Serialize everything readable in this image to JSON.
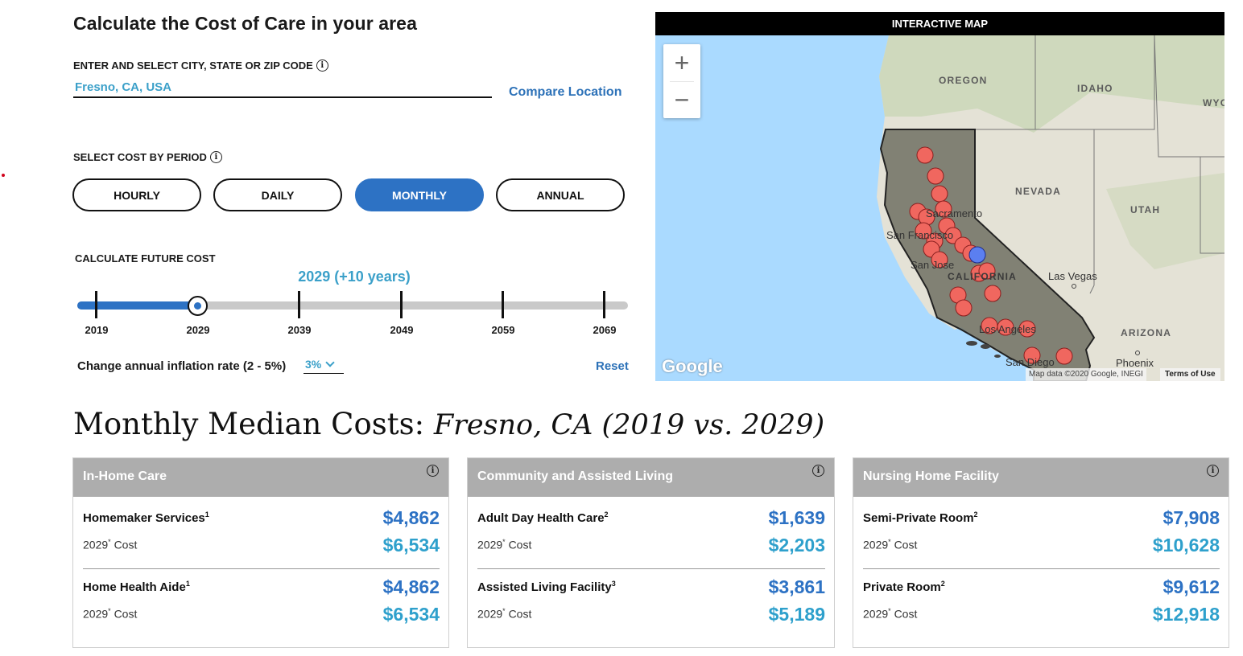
{
  "calculator": {
    "title": "Calculate the Cost of Care in your area",
    "city_label": "ENTER AND SELECT CITY, STATE OR ZIP CODE",
    "city_value": "Fresno, CA, USA",
    "compare_label": "Compare Location",
    "period_label": "SELECT COST BY PERIOD",
    "periods": [
      "HOURLY",
      "DAILY",
      "MONTHLY",
      "ANNUAL"
    ],
    "selected_period": "MONTHLY",
    "future_label": "CALCULATE FUTURE COST",
    "future_value": "2029 (+10 years)",
    "timeline_years": [
      "2019",
      "2029",
      "2039",
      "2049",
      "2059",
      "2069"
    ],
    "selected_year": "2029",
    "inflation_label": "Change annual inflation rate (2 - 5%)",
    "inflation_value": "3%",
    "reset_label": "Reset",
    "info_icon": "info-icon"
  },
  "map": {
    "header": "INTERACTIVE MAP",
    "zoom_in": "+",
    "zoom_out": "−",
    "labels": {
      "oregon": "OREGON",
      "idaho": "IDAHO",
      "wyoming": "WYO",
      "nevada": "NEVADA",
      "utah": "UTAH",
      "arizona": "ARIZONA",
      "california": "CALIFORNIA",
      "sacramento": "Sacramento",
      "san_francisco": "San Francisco",
      "san_jose": "San Jose",
      "las_vegas": "Las Vegas",
      "los_angeles": "Los Angeles",
      "san_diego": "San Diego",
      "phoenix": "Phoenix"
    },
    "google_logo": "Google",
    "attribution": "Map data ©2020 Google, INEGI",
    "terms": "Terms of Use",
    "colors": {
      "water": "#aadaff",
      "marker": "#f0675f",
      "selected_marker": "#5b7ff0"
    }
  },
  "results": {
    "heading_prefix": "Monthly Median Costs:",
    "heading_location": "Fresno, CA (2019 vs. 2029)",
    "cards": [
      {
        "title": "In-Home Care",
        "items": [
          {
            "name": "Homemaker Services",
            "sup": "1",
            "value": "$4,862",
            "future_label": "2029",
            "future_sup": "*",
            "future_suffix": "Cost",
            "future_value": "$6,534"
          },
          {
            "name": "Home Health Aide",
            "sup": "1",
            "value": "$4,862",
            "future_label": "2029",
            "future_sup": "*",
            "future_suffix": "Cost",
            "future_value": "$6,534"
          }
        ]
      },
      {
        "title": "Community and Assisted Living",
        "items": [
          {
            "name": "Adult Day Health Care",
            "sup": "2",
            "value": "$1,639",
            "future_label": "2029",
            "future_sup": "*",
            "future_suffix": "Cost",
            "future_value": "$2,203"
          },
          {
            "name": "Assisted Living Facility",
            "sup": "3",
            "value": "$3,861",
            "future_label": "2029",
            "future_sup": "*",
            "future_suffix": "Cost",
            "future_value": "$5,189"
          }
        ]
      },
      {
        "title": "Nursing Home Facility",
        "items": [
          {
            "name": "Semi-Private Room",
            "sup": "2",
            "value": "$7,908",
            "future_label": "2029",
            "future_sup": "*",
            "future_suffix": "Cost",
            "future_value": "$10,628"
          },
          {
            "name": "Private Room",
            "sup": "2",
            "value": "$9,612",
            "future_label": "2029",
            "future_sup": "*",
            "future_suffix": "Cost",
            "future_value": "$12,918"
          }
        ]
      }
    ]
  }
}
